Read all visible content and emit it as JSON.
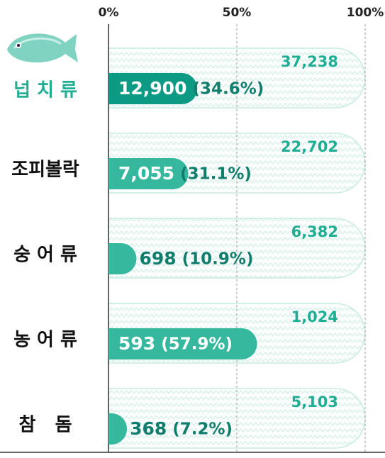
{
  "chart_data": {
    "type": "bar",
    "orientation": "horizontal",
    "categories": [
      "넙 치 류",
      "조피볼락",
      "숭 어 류",
      "농 어 류",
      "참   돔"
    ],
    "values": [
      34.6,
      31.1,
      10.9,
      57.9,
      7.2
    ],
    "value_labels": [
      "(34.6%)",
      "(31.1%)",
      "(10.9%)",
      "(57.9%)",
      "(7.2%)"
    ],
    "counts": [
      12900,
      7055,
      698,
      593,
      368
    ],
    "count_labels": [
      "12,900",
      "7,055",
      "698",
      "593",
      "368"
    ],
    "totals": [
      37238,
      22702,
      6382,
      1024,
      5103
    ],
    "total_labels": [
      "37,238",
      "22,702",
      "6,382",
      "1,024",
      "5,103"
    ],
    "colors": [
      "#0d9a84",
      "#36b89f",
      "#36b89f",
      "#36b89f",
      "#36b89f"
    ],
    "highlight_color": "#1fae93",
    "xlim": [
      0,
      100
    ],
    "xticks": [
      {
        "value": 0,
        "label": "0%"
      },
      {
        "value": 50,
        "label": "50%"
      },
      {
        "value": 100,
        "label": "100%"
      }
    ],
    "grid": true
  }
}
